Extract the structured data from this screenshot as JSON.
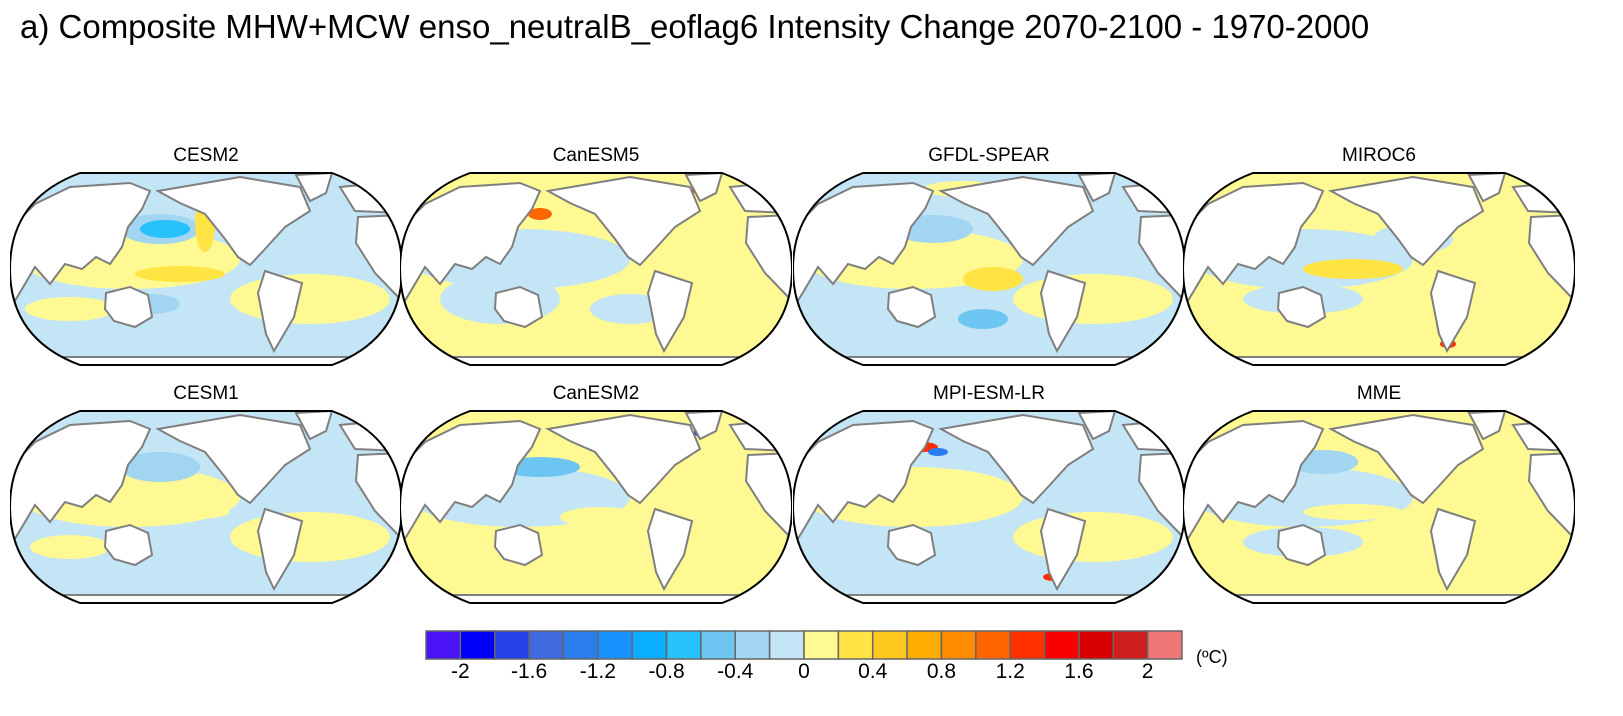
{
  "title": "a) Composite MHW+MCW enso_neutralB_eoflag6 Intensity Change 2070-2100 - 1970-2000",
  "panels": [
    {
      "name": "CESM2"
    },
    {
      "name": "CanESM5"
    },
    {
      "name": "GFDL-SPEAR"
    },
    {
      "name": "MIROC6"
    },
    {
      "name": "CESM1"
    },
    {
      "name": "CanESM2"
    },
    {
      "name": "MPI-ESM-LR"
    },
    {
      "name": "MME"
    }
  ],
  "colorbar": {
    "unit": "(ºC)",
    "levels": [
      -2,
      -1.8,
      -1.6,
      -1.4,
      -1.2,
      -1,
      -0.8,
      -0.6,
      -0.4,
      -0.2,
      0,
      0.2,
      0.4,
      0.6,
      0.8,
      1,
      1.2,
      1.4,
      1.6,
      1.8,
      2
    ],
    "tick_labels": [
      "-2",
      "-1.6",
      "-1.2",
      "-0.8",
      "-0.4",
      "0",
      "0.4",
      "0.8",
      "1.2",
      "1.6",
      "2"
    ],
    "colors": [
      "#4a14f6",
      "#0000fa",
      "#2442e8",
      "#3f6ae0",
      "#2b7cee",
      "#1a92fe",
      "#09aeff",
      "#27c2fb",
      "#6cc6f1",
      "#a1d5f1",
      "#c4e5f6",
      "#fff993",
      "#ffe444",
      "#ffc81f",
      "#ffac00",
      "#ff8c00",
      "#ff6600",
      "#ff3000",
      "#f80000",
      "#d60000",
      "#cd1d1d",
      "#ee7777"
    ]
  },
  "land_color": "#ffffff",
  "coast_color": "#7f7f7f"
}
